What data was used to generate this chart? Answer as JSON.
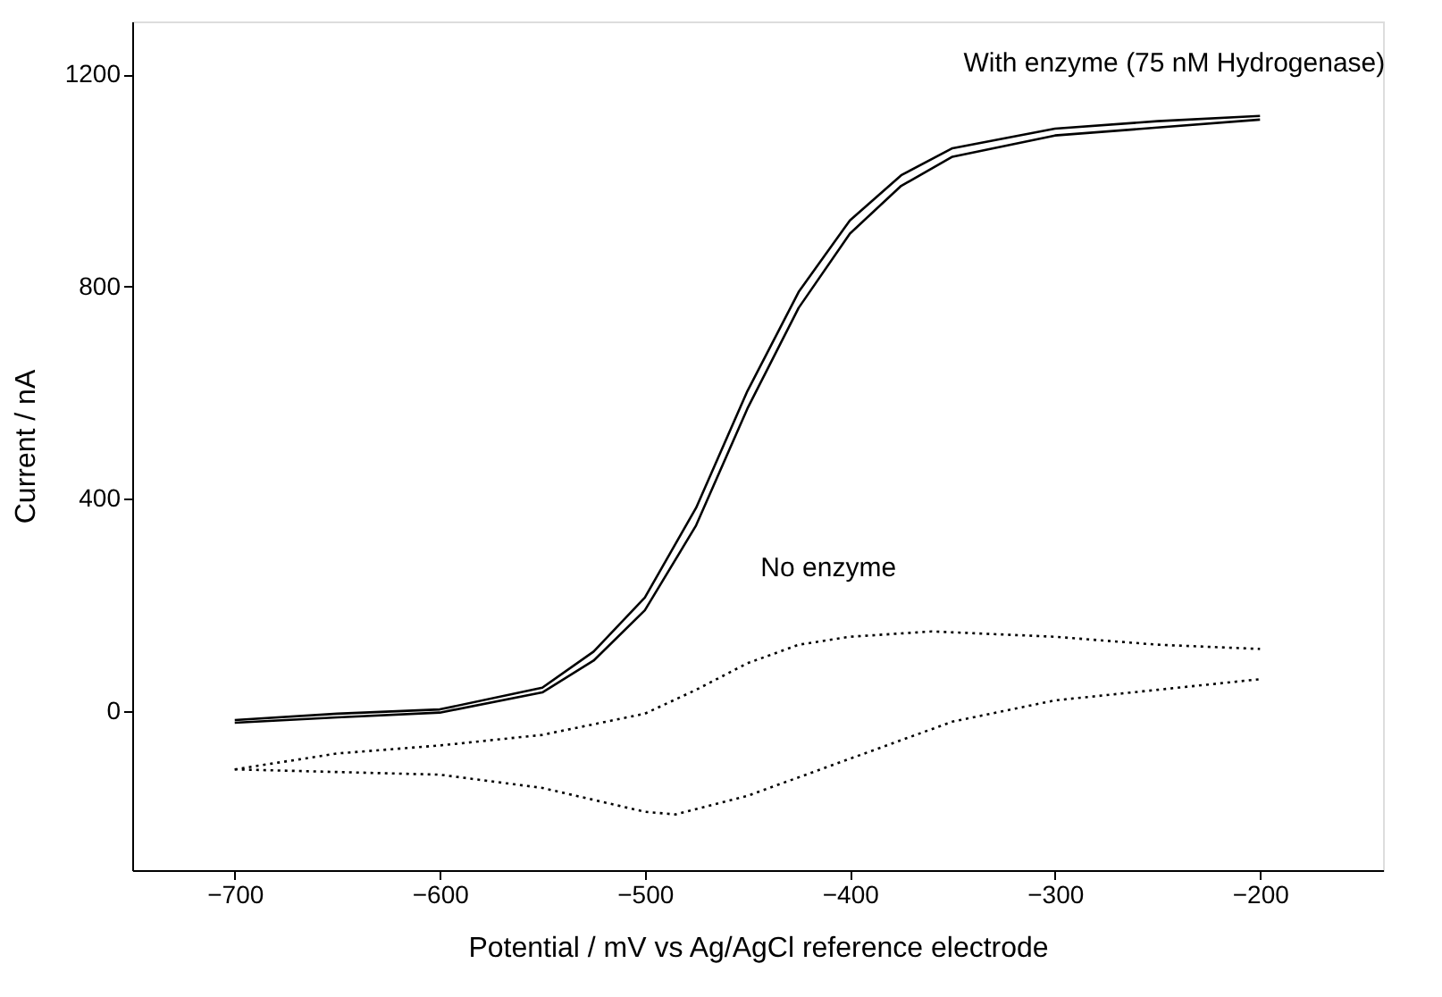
{
  "chart_data": {
    "type": "line",
    "xlabel": "Potential / mV vs Ag/AgCl reference electrode",
    "ylabel": "Current / nA",
    "xlim": [
      -750,
      -140
    ],
    "xticks": [
      -700,
      -600,
      -500,
      -400,
      -300,
      -200
    ],
    "ylim": [
      -300,
      1300
    ],
    "yticks": [
      0,
      400,
      800,
      1200
    ],
    "grid": false,
    "series": [
      {
        "name": "With enzyme (75 nM Hydrogenase)",
        "color": "#000000",
        "line_style": "solid",
        "x": [
          -700,
          -650,
          -600,
          -550,
          -525,
          -500,
          -475,
          -450,
          -425,
          -400,
          -375,
          -350,
          -300,
          -250,
          -200
        ],
        "values": [
          -17,
          -5,
          3,
          44,
          112,
          214,
          383,
          603,
          790,
          925,
          1010,
          1061,
          1098,
          1112,
          1122
        ]
      },
      {
        "color": "#000000",
        "line_style": "solid",
        "x": [
          -700,
          -650,
          -600,
          -550,
          -525,
          -500,
          -475,
          -450,
          -425,
          -400,
          -375,
          -350,
          -300,
          -250,
          -200
        ],
        "values": [
          -22,
          -12,
          -3,
          35,
          95,
          190,
          350,
          570,
          760,
          900,
          990,
          1045,
          1085,
          1100,
          1115
        ]
      },
      {
        "name": "No enzyme",
        "color": "#000000",
        "line_style": "dotted",
        "x": [
          -700,
          -650,
          -600,
          -550,
          -500,
          -475,
          -450,
          -425,
          -400,
          -360,
          -300,
          -250,
          -200
        ],
        "values": [
          -110,
          -80,
          -65,
          -45,
          -5,
          40,
          90,
          125,
          140,
          150,
          140,
          125,
          117
        ]
      },
      {
        "color": "#000000",
        "line_style": "dotted",
        "x": [
          -700,
          -650,
          -600,
          -550,
          -500,
          -485,
          -450,
          -400,
          -350,
          -300,
          -250,
          -200
        ],
        "values": [
          -110,
          -115,
          -120,
          -145,
          -190,
          -195,
          -160,
          -90,
          -20,
          20,
          40,
          60
        ]
      }
    ]
  }
}
